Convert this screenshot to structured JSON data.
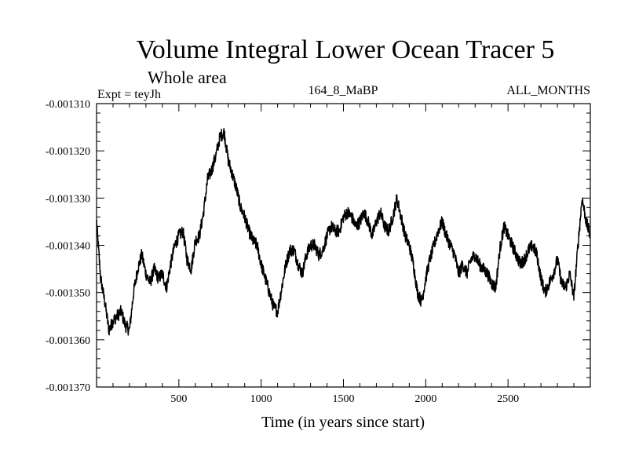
{
  "chart_data": {
    "type": "line",
    "title": "Volume Integral Lower Ocean Tracer 5",
    "subtitle": "Whole area",
    "experiment": "Expt = teyJh",
    "run_label": "164_8_MaBP",
    "period_label": "ALL_MONTHS",
    "xlabel": "Time (in years since start)",
    "ylabel": "",
    "xlim": [
      0,
      3000
    ],
    "ylim": [
      -0.00137,
      -0.00131
    ],
    "x_ticks": [
      500,
      1000,
      1500,
      2000,
      2500
    ],
    "x_tick_labels": [
      "500",
      "1000",
      "1500",
      "2000",
      "2500"
    ],
    "y_ticks": [
      -0.00131,
      -0.00132,
      -0.00133,
      -0.00134,
      -0.00135,
      -0.00136,
      -0.00137
    ],
    "y_tick_labels": [
      "-0.001310",
      "-0.001320",
      "-0.001330",
      "-0.001340",
      "-0.001350",
      "-0.001360",
      "-0.001370"
    ],
    "series": [
      {
        "name": "Volume Integral Lower Ocean Tracer 5",
        "color": "#000000",
        "x": [
          0,
          25,
          50,
          75,
          100,
          125,
          150,
          175,
          200,
          225,
          250,
          275,
          300,
          325,
          350,
          375,
          400,
          425,
          450,
          475,
          500,
          525,
          550,
          575,
          600,
          625,
          650,
          675,
          700,
          725,
          750,
          775,
          800,
          825,
          850,
          875,
          900,
          925,
          950,
          975,
          1000,
          1025,
          1050,
          1075,
          1100,
          1125,
          1150,
          1175,
          1200,
          1225,
          1250,
          1275,
          1300,
          1325,
          1350,
          1375,
          1400,
          1425,
          1450,
          1475,
          1500,
          1525,
          1550,
          1575,
          1600,
          1625,
          1650,
          1675,
          1700,
          1725,
          1750,
          1775,
          1800,
          1825,
          1850,
          1875,
          1900,
          1925,
          1950,
          1975,
          2000,
          2025,
          2050,
          2075,
          2100,
          2125,
          2150,
          2175,
          2200,
          2225,
          2250,
          2275,
          2300,
          2325,
          2350,
          2375,
          2400,
          2425,
          2450,
          2475,
          2500,
          2525,
          2550,
          2575,
          2600,
          2625,
          2650,
          2675,
          2700,
          2725,
          2750,
          2775,
          2800,
          2825,
          2850,
          2875,
          2900,
          2925,
          2950,
          2975,
          3000
        ],
        "values": [
          -0.001335,
          -0.001347,
          -0.001352,
          -0.001358,
          -0.001356,
          -0.001355,
          -0.001354,
          -0.001357,
          -0.001358,
          -0.00135,
          -0.001345,
          -0.001342,
          -0.001346,
          -0.001348,
          -0.001345,
          -0.001347,
          -0.001346,
          -0.001349,
          -0.001344,
          -0.00134,
          -0.001338,
          -0.001337,
          -0.001343,
          -0.001345,
          -0.001339,
          -0.001338,
          -0.001333,
          -0.001326,
          -0.001324,
          -0.001321,
          -0.001317,
          -0.001316,
          -0.001322,
          -0.001325,
          -0.001328,
          -0.001332,
          -0.001334,
          -0.001337,
          -0.001339,
          -0.00134,
          -0.001344,
          -0.001347,
          -0.00135,
          -0.001353,
          -0.001354,
          -0.001349,
          -0.001344,
          -0.001341,
          -0.001341,
          -0.001344,
          -0.001346,
          -0.001342,
          -0.00134,
          -0.00134,
          -0.001342,
          -0.001341,
          -0.001338,
          -0.001336,
          -0.001337,
          -0.001337,
          -0.001334,
          -0.001333,
          -0.001334,
          -0.001336,
          -0.001335,
          -0.001333,
          -0.001335,
          -0.001338,
          -0.001335,
          -0.001333,
          -0.001336,
          -0.001337,
          -0.001334,
          -0.00133,
          -0.001334,
          -0.001338,
          -0.00134,
          -0.001344,
          -0.00135,
          -0.001352,
          -0.001347,
          -0.001343,
          -0.00134,
          -0.001337,
          -0.001335,
          -0.001338,
          -0.00134,
          -0.001342,
          -0.001346,
          -0.001344,
          -0.001346,
          -0.001343,
          -0.001342,
          -0.001344,
          -0.001345,
          -0.001346,
          -0.001348,
          -0.001349,
          -0.001341,
          -0.001336,
          -0.001338,
          -0.00134,
          -0.001342,
          -0.001344,
          -0.001343,
          -0.001341,
          -0.00134,
          -0.001342,
          -0.001347,
          -0.00135,
          -0.001348,
          -0.001346,
          -0.001343,
          -0.001348,
          -0.001349,
          -0.001346,
          -0.001351,
          -0.00134,
          -0.00133,
          -0.001335,
          -0.001338
        ]
      }
    ]
  }
}
